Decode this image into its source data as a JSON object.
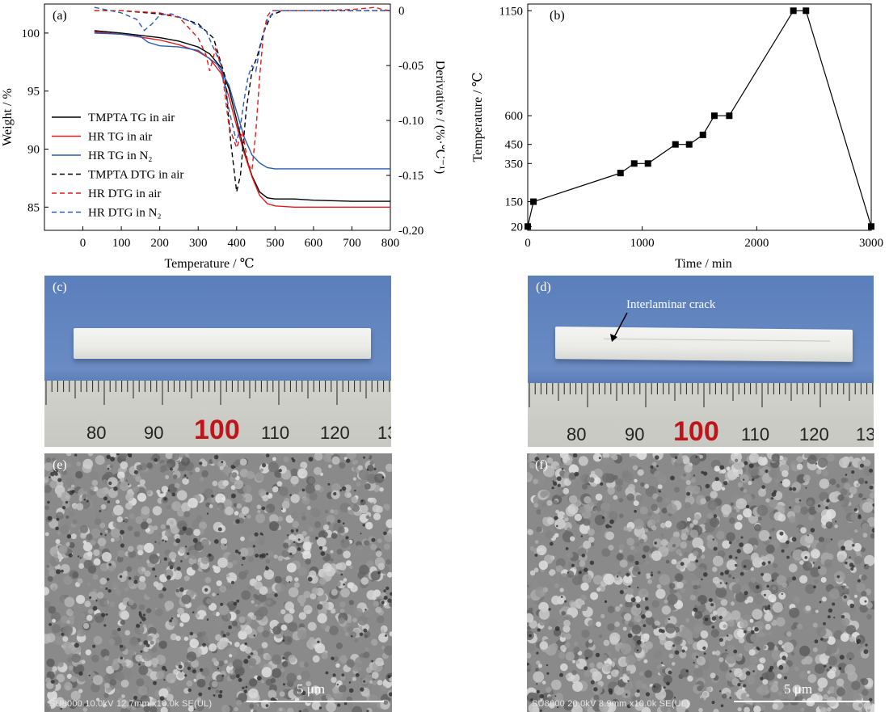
{
  "panels": {
    "a": "(a)",
    "b": "(b)",
    "c": "(c)",
    "d": "(d)",
    "e": "(e)",
    "f": "(f)"
  },
  "chart_data": [
    {
      "type": "line",
      "panel": "a",
      "xlabel": "Temperature / ℃",
      "ylabel": "Weight / %",
      "y2label": "Derivative / (%·℃⁻¹)",
      "xlim": [
        -100,
        800
      ],
      "ylim": [
        83,
        102.5
      ],
      "y2lim": [
        -0.2,
        0.006
      ],
      "xticks": [
        0,
        100,
        200,
        300,
        400,
        500,
        600,
        700,
        800
      ],
      "yticks": [
        85,
        90,
        95,
        100
      ],
      "y2ticks": [
        -0.2,
        -0.15,
        -0.1,
        -0.05,
        0
      ],
      "y2ticklabels": [
        "-0.20",
        "-0.15",
        "-0.10",
        "-0.05",
        "0"
      ],
      "legend_position": "left",
      "series": [
        {
          "name": "TMPTA TG in air",
          "axis": "left",
          "color": "#000000",
          "dash": "solid",
          "x": [
            30,
            100,
            200,
            250,
            300,
            330,
            360,
            380,
            400,
            420,
            440,
            460,
            480,
            500,
            550,
            600,
            700,
            800
          ],
          "y": [
            100.2,
            100.0,
            99.6,
            99.3,
            98.8,
            98.2,
            97.0,
            95.2,
            92.5,
            89.8,
            87.7,
            86.3,
            85.8,
            85.7,
            85.7,
            85.6,
            85.5,
            85.5
          ]
        },
        {
          "name": "HR TG in air",
          "axis": "left",
          "color": "#e41a1c",
          "dash": "solid",
          "x": [
            30,
            100,
            200,
            250,
            300,
            330,
            360,
            380,
            400,
            420,
            440,
            460,
            480,
            500,
            550,
            600,
            700,
            800
          ],
          "y": [
            100.1,
            99.9,
            99.4,
            99.0,
            98.4,
            97.8,
            96.5,
            94.5,
            92.0,
            89.6,
            87.6,
            86.0,
            85.3,
            85.1,
            85.0,
            85.0,
            85.0,
            85.0
          ]
        },
        {
          "name": "HR TG in N₂",
          "axis": "left",
          "color": "#2a5ab4",
          "dash": "solid",
          "x": [
            30,
            100,
            150,
            170,
            200,
            250,
            300,
            350,
            380,
            400,
            420,
            440,
            460,
            480,
            500,
            550,
            600,
            700,
            800
          ],
          "y": [
            100.0,
            99.9,
            99.7,
            99.2,
            98.9,
            98.8,
            98.5,
            97.3,
            95.5,
            93.2,
            91.0,
            89.5,
            88.8,
            88.4,
            88.3,
            88.3,
            88.3,
            88.3,
            88.3
          ]
        },
        {
          "name": "TMPTA DTG in air",
          "axis": "right",
          "color": "#000000",
          "dash": "dashed",
          "x": [
            30,
            100,
            200,
            250,
            300,
            340,
            370,
            385,
            400,
            410,
            425,
            440,
            455,
            470,
            490,
            520,
            600,
            700,
            800
          ],
          "y": [
            0.0,
            0.0,
            -0.003,
            -0.006,
            -0.012,
            -0.025,
            -0.06,
            -0.12,
            -0.165,
            -0.15,
            -0.09,
            -0.055,
            -0.04,
            -0.02,
            -0.004,
            0.0,
            0.0,
            0.0,
            0.0
          ]
        },
        {
          "name": "HR DTG in air",
          "axis": "right",
          "color": "#e41a1c",
          "dash": "dashed",
          "x": [
            30,
            100,
            200,
            250,
            300,
            320,
            330,
            345,
            360,
            380,
            400,
            415,
            430,
            440,
            450,
            460,
            470,
            480,
            490,
            520,
            600,
            700,
            760,
            780,
            800
          ],
          "y": [
            0.0,
            0.0,
            -0.002,
            -0.006,
            -0.025,
            -0.04,
            -0.055,
            -0.035,
            -0.05,
            -0.105,
            -0.125,
            -0.11,
            -0.14,
            -0.145,
            -0.11,
            -0.06,
            -0.02,
            -0.005,
            0.0,
            0.0,
            0.0,
            0.001,
            0.003,
            0.001,
            0.0
          ]
        },
        {
          "name": "HR DTG in N₂",
          "axis": "right",
          "color": "#2a5ab4",
          "dash": "dashed",
          "x": [
            30,
            100,
            140,
            160,
            180,
            200,
            230,
            280,
            320,
            360,
            380,
            400,
            410,
            420,
            430,
            440,
            450,
            460,
            480,
            500,
            550,
            700,
            800
          ],
          "y": [
            0.003,
            -0.002,
            -0.008,
            -0.018,
            -0.012,
            -0.004,
            -0.003,
            -0.01,
            -0.018,
            -0.05,
            -0.09,
            -0.12,
            -0.105,
            -0.08,
            -0.06,
            -0.05,
            -0.055,
            -0.035,
            -0.008,
            0.0,
            0.0,
            0.0,
            0.0
          ]
        }
      ]
    },
    {
      "type": "line",
      "panel": "b",
      "xlabel": "Time / min",
      "ylabel": "Temperature / ℃",
      "xlim": [
        0,
        3000
      ],
      "ylim": [
        0,
        1185
      ],
      "xticks": [
        0,
        1000,
        2000,
        3000
      ],
      "yticks": [
        20,
        150,
        350,
        450,
        600,
        1150
      ],
      "series": [
        {
          "name": "",
          "color": "#000000",
          "marker": "square",
          "x": [
            0,
            50,
            810,
            930,
            1050,
            1290,
            1410,
            1530,
            1630,
            1760,
            2320,
            2430,
            3000
          ],
          "y": [
            20,
            150,
            300,
            350,
            350,
            450,
            450,
            500,
            600,
            600,
            1150,
            1150,
            20
          ]
        }
      ]
    }
  ],
  "photo_c": {
    "ruler_numbers": [
      "80",
      "90",
      "100",
      "110",
      "120",
      "13"
    ]
  },
  "photo_d": {
    "annotation": "Interlaminar crack",
    "ruler_numbers": [
      "80",
      "90",
      "100",
      "110",
      "120",
      "13"
    ]
  },
  "sem_e": {
    "footer": "SU8000 10.0kV 12.7mm x10.0k SE(UL)",
    "scale_label": "5 μm"
  },
  "sem_f": {
    "footer": "SU8000 20.0kV 8.9mm x10.0k SE(UL)",
    "scale_label": "5 μm"
  }
}
